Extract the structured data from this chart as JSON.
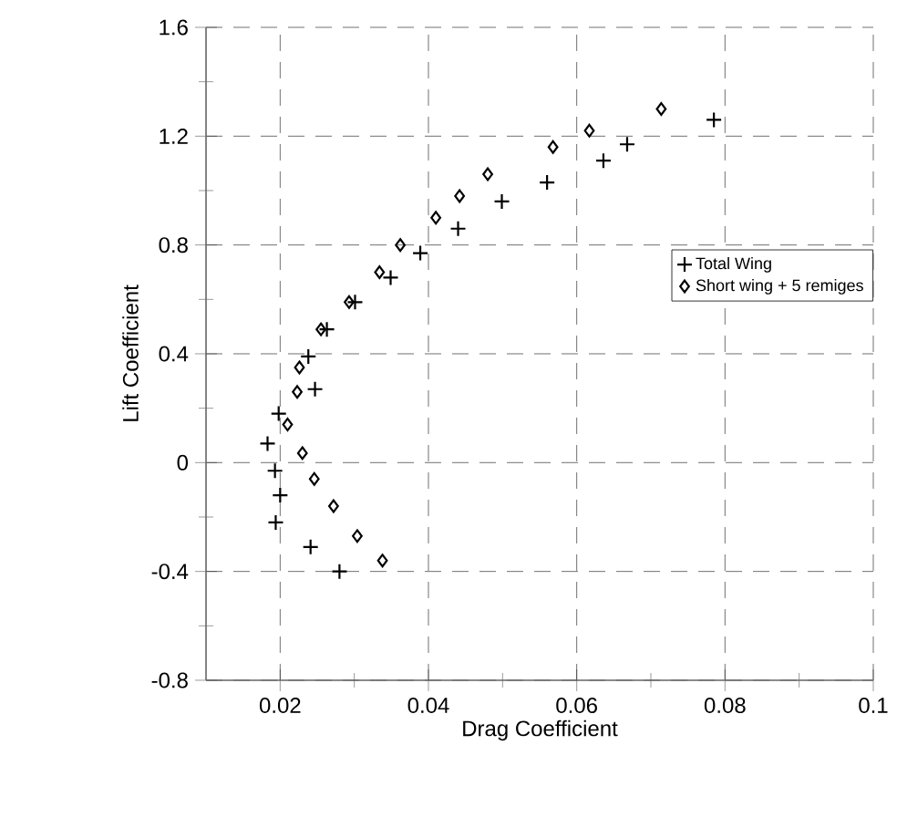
{
  "chart_data": {
    "type": "scatter",
    "xlabel": "Drag Coefficient",
    "ylabel": "Lift Coefficient",
    "xlim": [
      0.01,
      0.1
    ],
    "ylim": [
      -0.8,
      1.6
    ],
    "xticks": [
      0.02,
      0.04,
      0.06,
      0.08,
      0.1
    ],
    "yticks": [
      -0.8,
      -0.4,
      0,
      0.4,
      0.8,
      1.2,
      1.6
    ],
    "grid": true,
    "legend": "right",
    "series": [
      {
        "name": "Total Wing",
        "color": "#000000",
        "marker": "cross",
        "x": [
          0.028,
          0.0241,
          0.0194,
          0.02,
          0.0193,
          0.0183,
          0.0198,
          0.0247,
          0.0238,
          0.0263,
          0.0301,
          0.0349,
          0.0389,
          0.044,
          0.0499,
          0.056,
          0.0636,
          0.0668,
          0.0785
        ],
        "values": [
          -0.4,
          -0.31,
          -0.22,
          -0.12,
          -0.03,
          0.07,
          0.18,
          0.27,
          0.39,
          0.49,
          0.59,
          0.68,
          0.77,
          0.86,
          0.96,
          1.03,
          1.11,
          1.17,
          1.26
        ]
      },
      {
        "name": "Short wing + 5 remiges",
        "color": "#000000",
        "marker": "diamond",
        "x": [
          0.0338,
          0.0304,
          0.0272,
          0.0246,
          0.023,
          0.021,
          0.0223,
          0.0226,
          0.0255,
          0.0293,
          0.0334,
          0.0362,
          0.041,
          0.0442,
          0.048,
          0.0568,
          0.0617,
          0.0714
        ],
        "values": [
          -0.36,
          -0.27,
          -0.16,
          -0.06,
          0.035,
          0.14,
          0.26,
          0.35,
          0.49,
          0.59,
          0.7,
          0.8,
          0.9,
          0.98,
          1.06,
          1.16,
          1.22,
          1.3
        ]
      }
    ]
  }
}
